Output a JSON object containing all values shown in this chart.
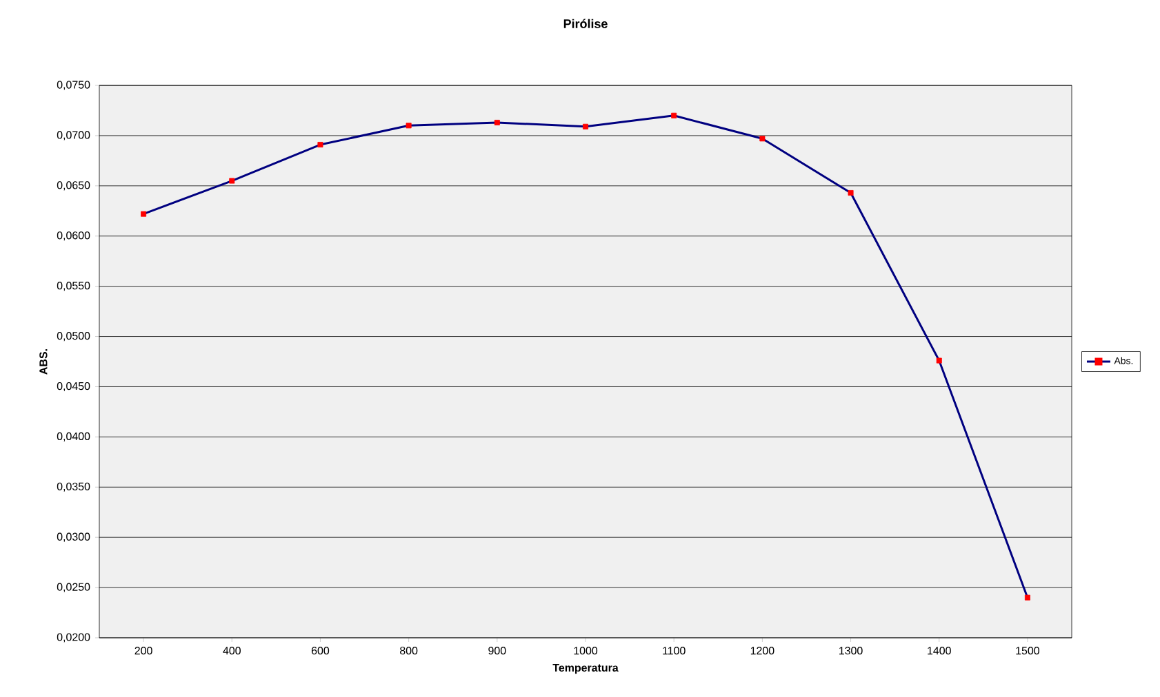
{
  "chart_data": {
    "type": "line",
    "title": "Pirólise",
    "xlabel": "Temperatura",
    "ylabel": "ABS.",
    "categories": [
      "200",
      "400",
      "600",
      "800",
      "900",
      "1000",
      "1100",
      "1200",
      "1300",
      "1400",
      "1500"
    ],
    "series": [
      {
        "name": "Abs.",
        "color": "#000080",
        "colors": [
          "#ff0000",
          "#ff0000",
          "#ff0000",
          "#ff0000",
          "#ff0000",
          "#ff0000",
          "#ff0000",
          "#ff0000",
          "#ff0000",
          "#ff0000",
          "#ff0000"
        ],
        "values": [
          0.0622,
          0.0655,
          0.0691,
          0.071,
          0.0713,
          0.0709,
          0.072,
          0.0697,
          0.0643,
          0.0476,
          0.024
        ]
      }
    ],
    "ylim": [
      0.02,
      0.075
    ],
    "yticks": [
      {
        "value": 0.02,
        "label": "0,0200"
      },
      {
        "value": 0.025,
        "label": "0,0250"
      },
      {
        "value": 0.03,
        "label": "0,0300"
      },
      {
        "value": 0.035,
        "label": "0,0350"
      },
      {
        "value": 0.04,
        "label": "0,0400"
      },
      {
        "value": 0.045,
        "label": "0,0450"
      },
      {
        "value": 0.05,
        "label": "0,0500"
      },
      {
        "value": 0.055,
        "label": "0,0550"
      },
      {
        "value": 0.06,
        "label": "0,0600"
      },
      {
        "value": 0.065,
        "label": "0,0650"
      },
      {
        "value": 0.07,
        "label": "0,0700"
      },
      {
        "value": 0.075,
        "label": "0,0750"
      }
    ],
    "grid": "y",
    "legend": "right",
    "marker": "square",
    "line_style": "solid"
  }
}
